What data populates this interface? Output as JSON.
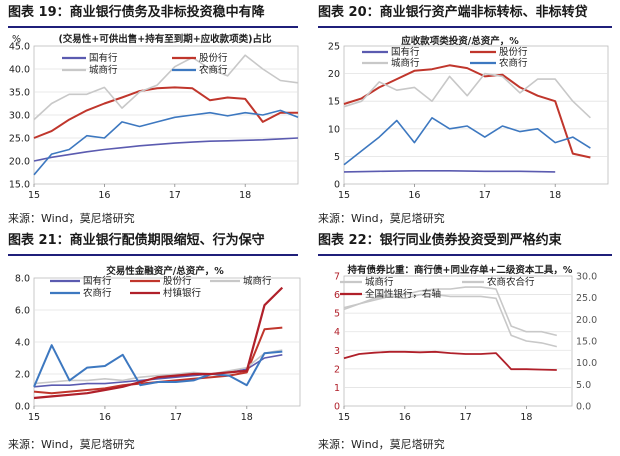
{
  "sources": [
    "来源：Wind，莫尼塔研究",
    "来源：Wind，莫尼塔研究",
    "来源：Wind，莫尼塔研究",
    "来源：Wind，莫尼塔研究"
  ],
  "colors": {
    "guoyou": "#5b5bb0",
    "gufen": "#c0362c",
    "chengshang": "#c8c8c8",
    "nongshang": "#3d78c0",
    "cunzhen": "#b0202a",
    "left_axis": "#b0202a",
    "right_axis": "#999999"
  },
  "chart_data": [
    {
      "type": "line",
      "figure_title": "图表 19：商业银行债务及非标投资稳中有降",
      "title": "(交易性+可供出售+持有至到期+应收款项类)占比",
      "unit": "%",
      "x_ticks": [
        "15",
        "16",
        "17",
        "18"
      ],
      "x_range": [
        2015.0,
        2018.75
      ],
      "ylim": [
        15,
        45
      ],
      "y_ticks": [
        15,
        20,
        25,
        30,
        35,
        40,
        45
      ],
      "y_tick_labels": [
        "15.0",
        "20.0",
        "25.0",
        "30.0",
        "35.0",
        "40.0",
        "45.0"
      ],
      "legend": [
        {
          "label": "国有行",
          "series": 0
        },
        {
          "label": "股份行",
          "series": 1
        },
        {
          "label": "城商行",
          "series": 2
        },
        {
          "label": "农商行",
          "series": 3
        }
      ],
      "series": [
        {
          "name": "国有行",
          "color_key": "guoyou",
          "x": [
            2015.0,
            2015.25,
            2015.5,
            2015.75,
            2016.0,
            2016.25,
            2016.5,
            2016.75,
            2017.0,
            2017.25,
            2017.5,
            2017.75,
            2018.0,
            2018.25,
            2018.5,
            2018.75
          ],
          "y": [
            20.0,
            20.8,
            21.4,
            22.0,
            22.5,
            22.9,
            23.3,
            23.6,
            23.9,
            24.1,
            24.3,
            24.4,
            24.5,
            24.6,
            24.8,
            25.0
          ]
        },
        {
          "name": "股份行",
          "color_key": "gufen",
          "x": [
            2015.0,
            2015.25,
            2015.5,
            2015.75,
            2016.0,
            2016.25,
            2016.5,
            2016.75,
            2017.0,
            2017.25,
            2017.5,
            2017.75,
            2018.0,
            2018.25,
            2018.5,
            2018.75
          ],
          "y": [
            25.0,
            26.5,
            29.0,
            31.0,
            32.5,
            33.8,
            35.2,
            35.8,
            36.0,
            35.8,
            33.2,
            33.8,
            33.5,
            28.5,
            30.5,
            30.5
          ]
        },
        {
          "name": "城商行",
          "color_key": "chengshang",
          "x": [
            2015.0,
            2015.25,
            2015.5,
            2015.75,
            2016.0,
            2016.25,
            2016.5,
            2016.75,
            2017.0,
            2017.25,
            2017.5,
            2017.75,
            2018.0,
            2018.25,
            2018.5,
            2018.75
          ],
          "y": [
            29.0,
            32.5,
            34.5,
            34.5,
            36.0,
            31.5,
            35.0,
            36.5,
            40.5,
            42.5,
            40.0,
            38.5,
            43.0,
            40.0,
            37.5,
            37.0
          ]
        },
        {
          "name": "农商行",
          "color_key": "nongshang",
          "x": [
            2015.0,
            2015.25,
            2015.5,
            2015.75,
            2016.0,
            2016.25,
            2016.5,
            2016.75,
            2017.0,
            2017.25,
            2017.5,
            2017.75,
            2018.0,
            2018.25,
            2018.5,
            2018.75
          ],
          "y": [
            17.0,
            21.5,
            22.5,
            25.5,
            25.0,
            28.5,
            27.5,
            28.5,
            29.5,
            30.0,
            30.5,
            29.8,
            30.5,
            30.0,
            31.0,
            29.5
          ]
        }
      ]
    },
    {
      "type": "line",
      "figure_title": "图表 20：商业银行资产端非标转标、非标转贷",
      "title": "应收款项类投资/总资产，%",
      "unit": "",
      "x_ticks": [
        "15",
        "16",
        "17",
        "18"
      ],
      "x_range": [
        2015.0,
        2018.75
      ],
      "ylim": [
        0,
        25
      ],
      "y_ticks": [
        0,
        5,
        10,
        15,
        20,
        25
      ],
      "y_tick_labels": [
        "0",
        "5",
        "10",
        "15",
        "20",
        "25"
      ],
      "legend": [
        {
          "label": "国有行",
          "series": 0
        },
        {
          "label": "股份行",
          "series": 1
        },
        {
          "label": "城商行",
          "series": 2
        },
        {
          "label": "农商行",
          "series": 3
        }
      ],
      "series": [
        {
          "name": "国有行",
          "color_key": "guoyou",
          "x": [
            2015.0,
            2015.5,
            2016.0,
            2016.5,
            2017.0,
            2017.5,
            2018.0
          ],
          "y": [
            2.2,
            2.3,
            2.4,
            2.4,
            2.3,
            2.3,
            2.2
          ]
        },
        {
          "name": "股份行",
          "color_key": "gufen",
          "x": [
            2015.0,
            2015.25,
            2015.5,
            2015.75,
            2016.0,
            2016.25,
            2016.5,
            2016.75,
            2017.0,
            2017.25,
            2017.5,
            2017.75,
            2018.0,
            2018.25,
            2018.5
          ],
          "y": [
            14.5,
            15.5,
            17.5,
            19.0,
            20.5,
            20.8,
            21.5,
            21.0,
            19.5,
            19.8,
            17.5,
            16.0,
            15.0,
            5.5,
            4.8
          ]
        },
        {
          "name": "城商行",
          "color_key": "chengshang",
          "x": [
            2015.0,
            2015.25,
            2015.5,
            2015.75,
            2016.0,
            2016.25,
            2016.5,
            2016.75,
            2017.0,
            2017.25,
            2017.5,
            2017.75,
            2018.0,
            2018.25,
            2018.5
          ],
          "y": [
            14.0,
            15.0,
            18.5,
            17.0,
            17.5,
            15.0,
            19.5,
            16.0,
            20.0,
            19.5,
            16.5,
            19.0,
            19.0,
            15.0,
            12.0
          ]
        },
        {
          "name": "农商行",
          "color_key": "nongshang",
          "x": [
            2015.0,
            2015.25,
            2015.5,
            2015.75,
            2016.0,
            2016.25,
            2016.5,
            2016.75,
            2017.0,
            2017.25,
            2017.5,
            2017.75,
            2018.0,
            2018.25,
            2018.5
          ],
          "y": [
            3.5,
            6.0,
            8.5,
            11.5,
            7.5,
            12.0,
            10.0,
            10.5,
            8.5,
            10.5,
            9.5,
            10.0,
            7.5,
            8.5,
            6.5
          ]
        }
      ]
    },
    {
      "type": "line",
      "figure_title": "图表 21：商业银行配债期限缩短、行为保守",
      "title": "交易性金融资产/总资产，%",
      "unit": "",
      "x_ticks": [
        "15",
        "16",
        "17",
        "18"
      ],
      "x_range": [
        2015.0,
        2018.75
      ],
      "ylim": [
        0,
        8
      ],
      "y_ticks": [
        0,
        2,
        4,
        6,
        8
      ],
      "y_tick_labels": [
        "0.0",
        "2.0",
        "4.0",
        "6.0",
        "8.0"
      ],
      "legend": [
        {
          "label": "国有行",
          "series": 0
        },
        {
          "label": "股份行",
          "series": 1
        },
        {
          "label": "城商行",
          "series": 2
        },
        {
          "label": "农商行",
          "series": 3
        },
        {
          "label": "村镇银行",
          "series": 4
        }
      ],
      "series": [
        {
          "name": "国有行",
          "color_key": "guoyou",
          "x": [
            2015.0,
            2015.25,
            2015.5,
            2015.75,
            2016.0,
            2016.25,
            2016.5,
            2016.75,
            2017.0,
            2017.25,
            2017.5,
            2017.75,
            2018.0,
            2018.25,
            2018.5
          ],
          "y": [
            1.2,
            1.3,
            1.3,
            1.4,
            1.4,
            1.5,
            1.6,
            1.7,
            1.8,
            1.9,
            2.0,
            2.1,
            2.3,
            3.0,
            3.2
          ]
        },
        {
          "name": "股份行",
          "color_key": "gufen",
          "x": [
            2015.0,
            2015.25,
            2015.5,
            2015.75,
            2016.0,
            2016.25,
            2016.5,
            2016.75,
            2017.0,
            2017.25,
            2017.5,
            2017.75,
            2018.0,
            2018.25,
            2018.5
          ],
          "y": [
            0.9,
            0.8,
            0.9,
            1.0,
            1.1,
            1.3,
            1.4,
            1.5,
            1.6,
            1.7,
            1.8,
            1.9,
            2.1,
            4.8,
            4.9
          ]
        },
        {
          "name": "城商行",
          "color_key": "chengshang",
          "x": [
            2015.0,
            2015.25,
            2015.5,
            2015.75,
            2016.0,
            2016.25,
            2016.5,
            2016.75,
            2017.0,
            2017.25,
            2017.5,
            2017.75,
            2018.0,
            2018.25,
            2018.5
          ],
          "y": [
            1.4,
            1.5,
            1.6,
            1.6,
            1.7,
            1.6,
            1.8,
            1.9,
            2.0,
            2.1,
            2.0,
            2.2,
            2.4,
            3.3,
            3.5
          ]
        },
        {
          "name": "农商行",
          "color_key": "nongshang",
          "x": [
            2015.0,
            2015.25,
            2015.5,
            2015.75,
            2016.0,
            2016.25,
            2016.5,
            2016.75,
            2017.0,
            2017.25,
            2017.5,
            2017.75,
            2018.0,
            2018.25,
            2018.5
          ],
          "y": [
            1.2,
            3.8,
            1.6,
            2.4,
            2.5,
            3.2,
            1.3,
            1.5,
            1.5,
            1.6,
            2.0,
            1.9,
            1.3,
            3.3,
            3.4
          ]
        },
        {
          "name": "村镇银行",
          "color_key": "cunzhen",
          "x": [
            2015.0,
            2015.25,
            2015.5,
            2015.75,
            2016.0,
            2016.25,
            2016.5,
            2016.75,
            2017.0,
            2017.25,
            2017.5,
            2017.75,
            2018.0,
            2018.25,
            2018.5
          ],
          "y": [
            0.5,
            0.6,
            0.7,
            0.8,
            1.0,
            1.2,
            1.5,
            1.8,
            1.9,
            2.0,
            2.0,
            2.1,
            2.2,
            6.3,
            7.4
          ]
        }
      ]
    },
    {
      "type": "line",
      "figure_title": "图表 22：银行同业债券投资受到严格约束",
      "title": "持有债券比重：商行债+同业存单+二级资本工具，%",
      "unit": "",
      "x_ticks": [
        "15",
        "16",
        "17",
        "18"
      ],
      "x_range": [
        2015.0,
        2018.75
      ],
      "ylim": [
        0,
        7
      ],
      "y_ticks": [
        0,
        1,
        2,
        3,
        4,
        5,
        6,
        7
      ],
      "y_tick_labels": [
        "0",
        "1",
        "2",
        "3",
        "4",
        "5",
        "6",
        "7"
      ],
      "y2lim": [
        0,
        30
      ],
      "y2_ticks": [
        0,
        5,
        10,
        15,
        20,
        25,
        30
      ],
      "y2_tick_labels": [
        "0.0",
        "5.0",
        "10.0",
        "15.0",
        "20.0",
        "25.0",
        "30.0"
      ],
      "legend": [
        {
          "label": "城商行",
          "series": 0
        },
        {
          "label": "农商农合行",
          "series": 1
        },
        {
          "label": "全国性银行，右轴",
          "series": 2
        }
      ],
      "series": [
        {
          "name": "城商行",
          "color_key": "chengshang",
          "axis": "left",
          "x": [
            2015.0,
            2015.25,
            2015.5,
            2015.75,
            2016.0,
            2016.25,
            2016.5,
            2016.75,
            2017.0,
            2017.25,
            2017.5,
            2017.75,
            2018.0,
            2018.25,
            2018.5
          ],
          "y": [
            5.2,
            5.5,
            5.8,
            6.0,
            6.0,
            6.2,
            6.3,
            6.3,
            6.4,
            6.4,
            6.3,
            4.3,
            4.0,
            4.0,
            3.8
          ]
        },
        {
          "name": "农商农合行",
          "color_key": "chengshang",
          "axis": "left",
          "x": [
            2015.0,
            2015.25,
            2015.5,
            2015.75,
            2016.0,
            2016.25,
            2016.5,
            2016.75,
            2017.0,
            2017.25,
            2017.5,
            2017.75,
            2018.0,
            2018.25,
            2018.5
          ],
          "y": [
            5.3,
            5.5,
            5.7,
            5.9,
            5.8,
            6.0,
            6.0,
            5.9,
            5.9,
            5.9,
            5.8,
            3.8,
            3.5,
            3.4,
            3.2
          ]
        },
        {
          "name": "全国性银行，右轴",
          "color_key": "cunzhen",
          "axis": "right",
          "x": [
            2015.0,
            2015.25,
            2015.5,
            2015.75,
            2016.0,
            2016.25,
            2016.5,
            2016.75,
            2017.0,
            2017.25,
            2017.5,
            2017.75,
            2018.0,
            2018.25,
            2018.5
          ],
          "y": [
            11.0,
            12.0,
            12.3,
            12.5,
            12.5,
            12.4,
            12.5,
            12.2,
            12.0,
            12.0,
            12.2,
            8.5,
            8.5,
            8.4,
            8.3
          ]
        }
      ]
    }
  ]
}
